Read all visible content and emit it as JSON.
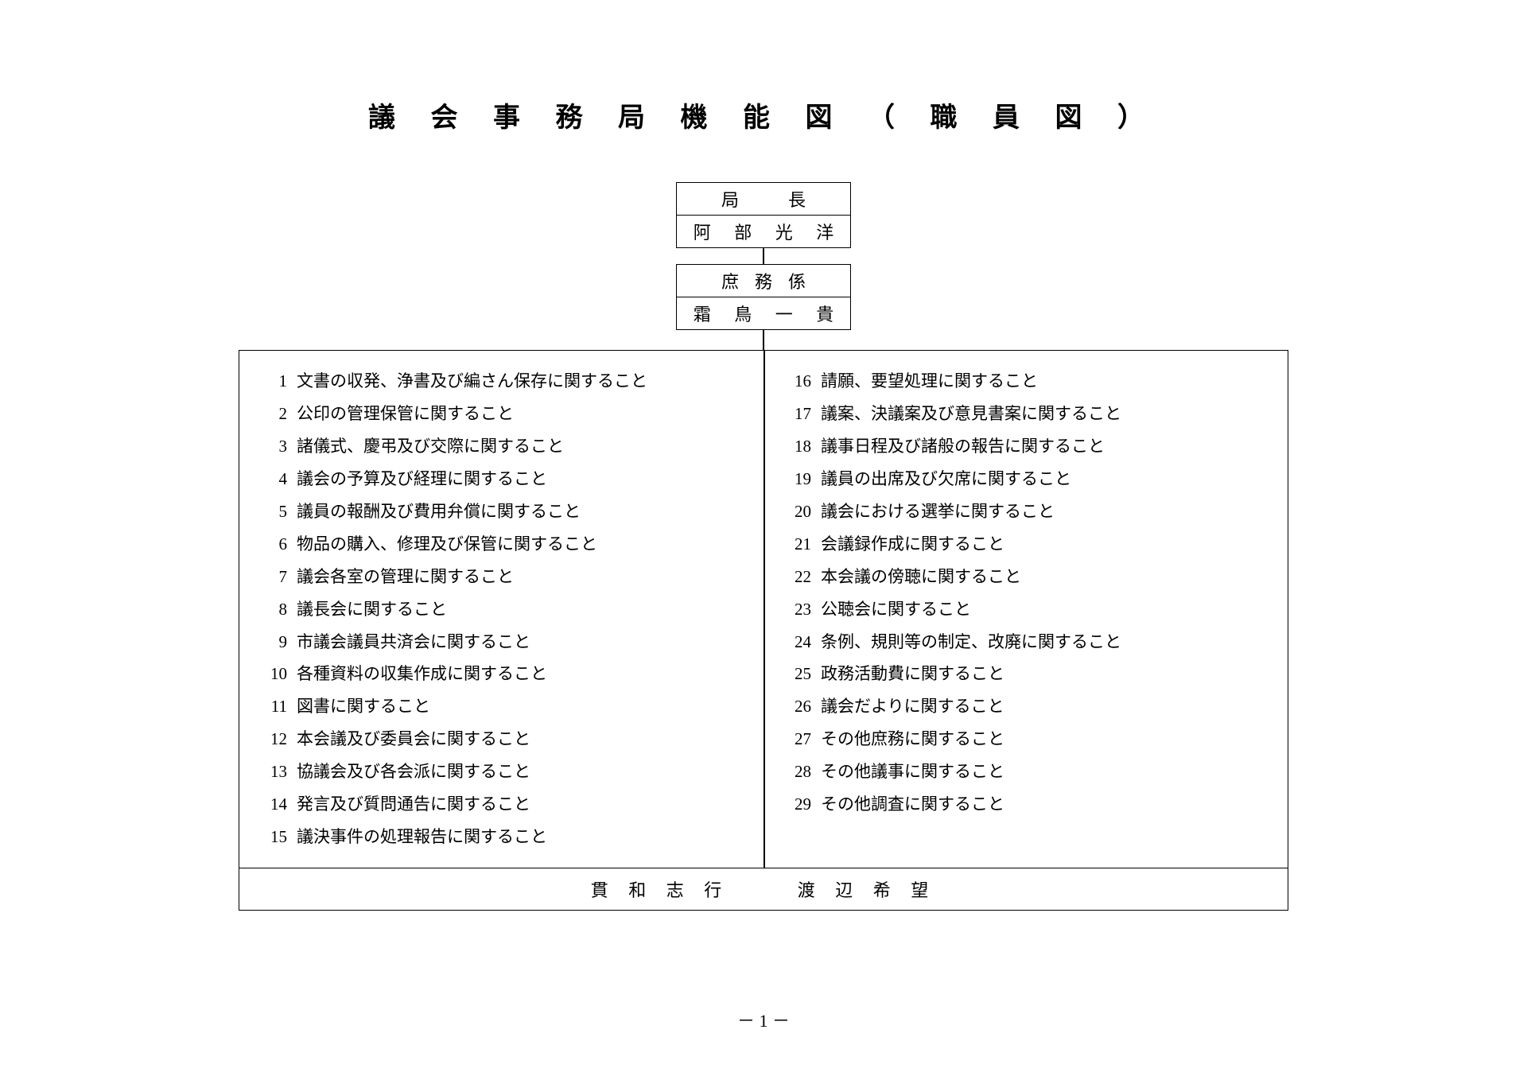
{
  "title": "議 会 事 務 局 機 能 図 （ 職 員 図 ）",
  "boxes": {
    "director": {
      "title": "局　長",
      "name": "阿 部 光 洋"
    },
    "section": {
      "title": "庶務係",
      "name": "霜 鳥 一 貴"
    }
  },
  "duties_left": [
    {
      "n": "1",
      "t": "文書の収発、浄書及び編さん保存に関すること"
    },
    {
      "n": "2",
      "t": "公印の管理保管に関すること"
    },
    {
      "n": "3",
      "t": "諸儀式、慶弔及び交際に関すること"
    },
    {
      "n": "4",
      "t": "議会の予算及び経理に関すること"
    },
    {
      "n": "5",
      "t": "議員の報酬及び費用弁償に関すること"
    },
    {
      "n": "6",
      "t": "物品の購入、修理及び保管に関すること"
    },
    {
      "n": "7",
      "t": "議会各室の管理に関すること"
    },
    {
      "n": "8",
      "t": "議長会に関すること"
    },
    {
      "n": "9",
      "t": "市議会議員共済会に関すること"
    },
    {
      "n": "10",
      "t": "各種資料の収集作成に関すること"
    },
    {
      "n": "11",
      "t": "図書に関すること"
    },
    {
      "n": "12",
      "t": "本会議及び委員会に関すること"
    },
    {
      "n": "13",
      "t": "協議会及び各会派に関すること"
    },
    {
      "n": "14",
      "t": "発言及び質問通告に関すること"
    },
    {
      "n": "15",
      "t": "議決事件の処理報告に関すること"
    }
  ],
  "duties_right": [
    {
      "n": "16",
      "t": "請願、要望処理に関すること"
    },
    {
      "n": "17",
      "t": "議案、決議案及び意見書案に関すること"
    },
    {
      "n": "18",
      "t": "議事日程及び諸般の報告に関すること"
    },
    {
      "n": "19",
      "t": "議員の出席及び欠席に関すること"
    },
    {
      "n": "20",
      "t": "議会における選挙に関すること"
    },
    {
      "n": "21",
      "t": "会議録作成に関すること"
    },
    {
      "n": "22",
      "t": "本会議の傍聴に関すること"
    },
    {
      "n": "23",
      "t": "公聴会に関すること"
    },
    {
      "n": "24",
      "t": "条例、規則等の制定、改廃に関すること"
    },
    {
      "n": "25",
      "t": "政務活動費に関すること"
    },
    {
      "n": "26",
      "t": "議会だよりに関すること"
    },
    {
      "n": "27",
      "t": "その他庶務に関すること"
    },
    {
      "n": "28",
      "t": "その他議事に関すること"
    },
    {
      "n": "29",
      "t": "その他調査に関すること"
    }
  ],
  "bottom_names": {
    "left": "貫 和 志 行",
    "right": "渡 辺 希 望"
  },
  "page_number": "－ 1 －",
  "style": {
    "background": "#ffffff",
    "text_color": "#000000",
    "border_color": "#000000",
    "title_fontsize": 34,
    "body_fontsize": 21,
    "box_fontsize": 22
  }
}
